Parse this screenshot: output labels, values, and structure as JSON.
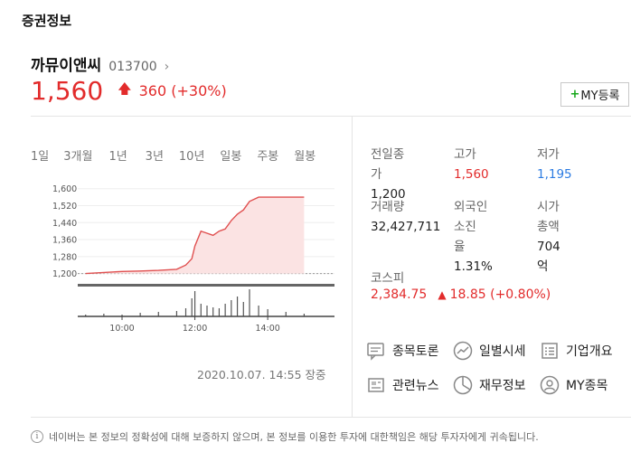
{
  "section_title": "증권정보",
  "stock": {
    "name": "까뮤이앤씨",
    "code": "013700",
    "price": "1,560",
    "change": "360",
    "change_pct": "(+30%)",
    "my_button_plus": "+",
    "my_button_label": "MY등록"
  },
  "tabs": [
    {
      "label": "1일",
      "active": true
    },
    {
      "label": "3개월",
      "active": false
    },
    {
      "label": "1년",
      "active": false
    },
    {
      "label": "3년",
      "active": false
    },
    {
      "label": "10년",
      "active": false
    },
    {
      "label": "일봉",
      "active": false
    },
    {
      "label": "주봉",
      "active": false
    },
    {
      "label": "월봉",
      "active": false
    }
  ],
  "chart_data": {
    "type": "line",
    "title": "",
    "xlabel": "",
    "ylabel": "",
    "ylim": [
      1160,
      1620
    ],
    "yticks": [
      "1,600",
      "1,520",
      "1,440",
      "1,360",
      "1,280",
      "1,200"
    ],
    "xticks": [
      "10:00",
      "12:00",
      "14:00"
    ],
    "x": [
      "09:00",
      "09:30",
      "10:00",
      "10:30",
      "11:00",
      "11:30",
      "11:45",
      "11:55",
      "12:00",
      "12:10",
      "12:20",
      "12:30",
      "12:40",
      "12:50",
      "13:00",
      "13:10",
      "13:20",
      "13:30",
      "13:45",
      "14:00",
      "14:30",
      "15:00"
    ],
    "series": [
      {
        "values": [
          1200,
          1205,
          1210,
          1212,
          1215,
          1220,
          1240,
          1270,
          1330,
          1400,
          1390,
          1380,
          1400,
          1410,
          1450,
          1480,
          1500,
          1540,
          1560,
          1560,
          1560,
          1560
        ]
      }
    ],
    "prev_close": 1200,
    "volume": [
      2,
      3,
      2,
      4,
      5,
      6,
      9,
      20,
      28,
      14,
      12,
      10,
      9,
      14,
      18,
      22,
      16,
      30,
      12,
      8,
      5,
      3
    ]
  },
  "timestamp": "2020.10.07. 14:55 장중",
  "stats": {
    "prev_close_label": "전일종가",
    "prev_close": "1,200",
    "high_label": "고가",
    "high": "1,560",
    "low_label": "저가",
    "low": "1,195",
    "volume_label": "거래량",
    "volume": "32,427,711",
    "foreign_label_1": "외국인소진",
    "foreign_label_2": "율",
    "foreign": "1.31%",
    "mcap_label": "시가 총액",
    "mcap": "704억"
  },
  "kospi": {
    "label": "코스피",
    "value": "2,384.75",
    "change": "18.85 (+0.80%)"
  },
  "links": [
    {
      "label": "종목토론",
      "icon": "chat-icon"
    },
    {
      "label": "일별시세",
      "icon": "trend-icon"
    },
    {
      "label": "기업개요",
      "icon": "list-icon"
    },
    {
      "label": "관련뉴스",
      "icon": "news-icon"
    },
    {
      "label": "재무정보",
      "icon": "pie-icon"
    },
    {
      "label": "MY종목",
      "icon": "user-icon"
    }
  ],
  "disclaimer": "네이버는 본 정보의 정확성에 대해 보증하지 않으며, 본 정보를 이용한 투자에 대한책임은 해당 투자자에게 귀속됩니다.",
  "colors": {
    "up": "#e22b2b",
    "down": "#2b7be2",
    "chart_line": "#e05050",
    "chart_fill": "#fbe3e3"
  }
}
